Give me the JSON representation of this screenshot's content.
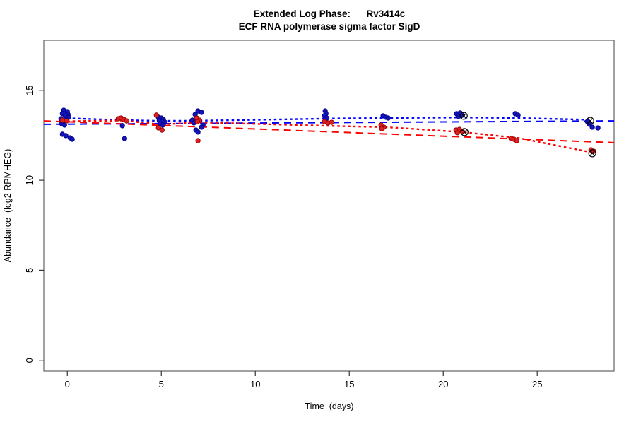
{
  "window": {
    "background": "#ffffff"
  },
  "chart_data": {
    "type": "scatter",
    "title": "Extended Log Phase:      Rv3414c",
    "subtitle": "ECF RNA polymerase sigma factor SigD",
    "xlabel": "Time  (days)",
    "ylabel": "Abundance  (log2 RPMHEG)",
    "xlim": [
      -1.25,
      29.09
    ],
    "ylim": [
      -0.6,
      17.78
    ],
    "xticks": [
      0,
      5,
      10,
      15,
      20,
      25
    ],
    "yticks": [
      0,
      5,
      10,
      15
    ],
    "grid": false,
    "legend": "none",
    "box_color": "#6e6e6e",
    "tick_color": "#333333",
    "series": [
      {
        "name": "blue-dashed-trend",
        "type": "line",
        "style": "dashed",
        "color": "#0000ff",
        "width": 2,
        "points": [
          [
            -1.25,
            13.11
          ],
          [
            29.09,
            13.3
          ]
        ]
      },
      {
        "name": "red-dashed-trend",
        "type": "line",
        "style": "dashed",
        "color": "#ff0000",
        "width": 2,
        "points": [
          [
            -1.25,
            13.3
          ],
          [
            29.09,
            12.09
          ]
        ]
      },
      {
        "name": "blue-dotted-trend",
        "type": "line",
        "style": "dotted",
        "color": "#0000ff",
        "width": 2.4,
        "points": [
          [
            0,
            13.45
          ],
          [
            3,
            13.34
          ],
          [
            5,
            13.3
          ],
          [
            7,
            13.31
          ],
          [
            14,
            13.43
          ],
          [
            17,
            13.46
          ],
          [
            21,
            13.49
          ],
          [
            24,
            13.46
          ],
          [
            27.9,
            13.36
          ]
        ]
      },
      {
        "name": "red-dotted-trend",
        "type": "line",
        "style": "dotted",
        "color": "#ff0000",
        "width": 2.4,
        "points": [
          [
            0,
            13.28
          ],
          [
            3,
            13.32
          ],
          [
            5,
            13.1
          ],
          [
            7,
            13.22
          ],
          [
            14,
            13.02
          ],
          [
            17,
            12.95
          ],
          [
            21,
            12.68
          ],
          [
            24,
            12.35
          ],
          [
            27.9,
            11.55
          ]
        ]
      },
      {
        "name": "blue-replicates",
        "type": "points",
        "color": "#1414b8",
        "edge": "#00008b",
        "radius": 3.2,
        "points": [
          [
            -0.19,
            13.89
          ],
          [
            0.0,
            13.81
          ],
          [
            -0.26,
            13.7
          ],
          [
            0.04,
            13.66
          ],
          [
            -0.11,
            13.58
          ],
          [
            0.08,
            13.5
          ],
          [
            -0.34,
            13.42
          ],
          [
            -0.08,
            13.38
          ],
          [
            -0.19,
            13.26
          ],
          [
            -0.3,
            13.15
          ],
          [
            -0.15,
            13.07
          ],
          [
            -0.26,
            12.56
          ],
          [
            -0.08,
            12.48
          ],
          [
            0.15,
            12.36
          ],
          [
            0.26,
            12.28
          ],
          [
            2.93,
            13.03
          ],
          [
            3.05,
            12.32
          ],
          [
            4.85,
            13.5
          ],
          [
            5.0,
            13.46
          ],
          [
            5.11,
            13.38
          ],
          [
            4.89,
            13.34
          ],
          [
            5.04,
            13.26
          ],
          [
            5.19,
            13.22
          ],
          [
            4.92,
            13.15
          ],
          [
            5.08,
            13.07
          ],
          [
            6.95,
            13.85
          ],
          [
            7.14,
            13.77
          ],
          [
            6.8,
            13.66
          ],
          [
            6.65,
            13.34
          ],
          [
            6.73,
            13.19
          ],
          [
            7.22,
            13.07
          ],
          [
            7.14,
            12.95
          ],
          [
            6.84,
            12.79
          ],
          [
            6.95,
            12.68
          ],
          [
            13.72,
            13.85
          ],
          [
            13.76,
            13.7
          ],
          [
            13.68,
            13.58
          ],
          [
            13.8,
            13.46
          ],
          [
            16.8,
            13.58
          ],
          [
            16.95,
            13.5
          ],
          [
            17.07,
            13.46
          ],
          [
            20.71,
            13.7
          ],
          [
            20.9,
            13.74
          ],
          [
            21.02,
            13.62
          ],
          [
            20.79,
            13.54
          ],
          [
            23.83,
            13.7
          ],
          [
            23.98,
            13.62
          ],
          [
            27.67,
            13.26
          ],
          [
            27.78,
            13.11
          ],
          [
            27.93,
            12.95
          ],
          [
            28.23,
            12.91
          ]
        ]
      },
      {
        "name": "red-replicates",
        "type": "points",
        "color": "#e02020",
        "edge": "#8b0000",
        "radius": 3.2,
        "points": [
          [
            -0.26,
            13.34
          ],
          [
            -0.04,
            13.3
          ],
          [
            2.71,
            13.42
          ],
          [
            2.86,
            13.46
          ],
          [
            3.01,
            13.38
          ],
          [
            3.16,
            13.3
          ],
          [
            4.74,
            13.62
          ],
          [
            4.85,
            12.91
          ],
          [
            5.04,
            12.79
          ],
          [
            6.88,
            13.46
          ],
          [
            7.03,
            13.34
          ],
          [
            6.92,
            13.26
          ],
          [
            6.95,
            12.2
          ],
          [
            13.68,
            13.26
          ],
          [
            13.87,
            13.19
          ],
          [
            14.06,
            13.22
          ],
          [
            16.69,
            13.07
          ],
          [
            16.84,
            12.95
          ],
          [
            16.73,
            12.87
          ],
          [
            20.68,
            12.79
          ],
          [
            20.86,
            12.83
          ],
          [
            21.02,
            12.71
          ],
          [
            20.75,
            12.64
          ],
          [
            23.61,
            12.32
          ],
          [
            23.76,
            12.28
          ],
          [
            23.91,
            12.2
          ],
          [
            27.86,
            11.69
          ],
          [
            28.01,
            11.61
          ]
        ]
      },
      {
        "name": "outlier-circle-x-markers",
        "type": "markers",
        "color": "#000000",
        "radius": 5,
        "points": [
          [
            21.09,
            13.58
          ],
          [
            21.13,
            12.68
          ],
          [
            27.82,
            13.3
          ],
          [
            27.93,
            11.5
          ]
        ]
      }
    ]
  }
}
